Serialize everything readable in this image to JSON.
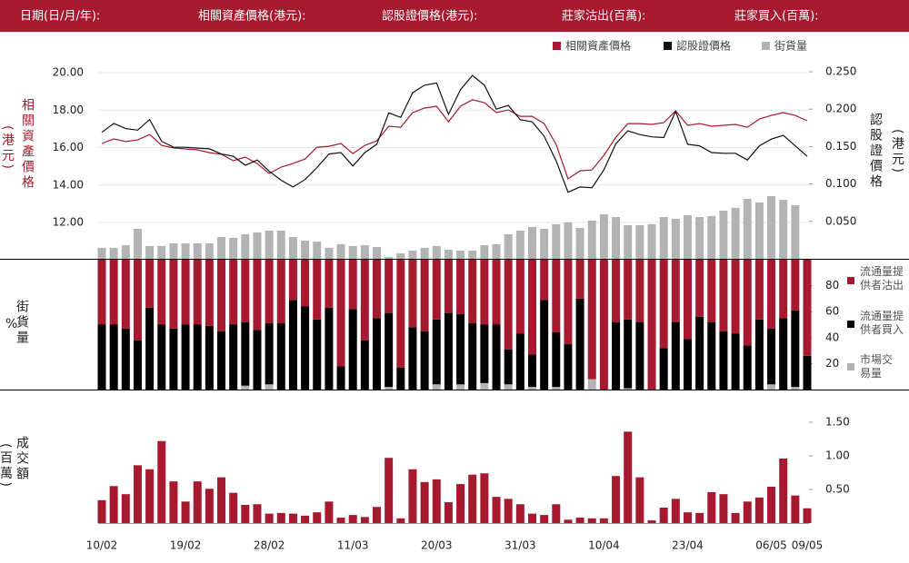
{
  "header": {
    "labels": [
      "日期(日/月/年):",
      "相關資產價格(港元):",
      "認股證價格(港元):",
      "莊家沽出(百萬):",
      "莊家買入(百萬):"
    ]
  },
  "chart_data": [
    {
      "type": "combo",
      "grid": true,
      "ylabel": "相關資產價格",
      "ylabel_unit": "(港元)",
      "y2label": "認股證價格",
      "y2label_unit": "(港元)",
      "ylim": [
        10.06,
        20.73
      ],
      "yticks": [
        {
          "value": 12,
          "label": "12.00"
        },
        {
          "value": 14,
          "label": "14.00"
        },
        {
          "value": 16,
          "label": "16.00"
        },
        {
          "value": 18,
          "label": "18.00"
        },
        {
          "value": 20,
          "label": "20.00"
        }
      ],
      "y2lim": [
        0,
        0.267
      ],
      "y2ticks": [
        {
          "value": 0.05,
          "label": "0.050"
        },
        {
          "value": 0.1,
          "label": "0.100"
        },
        {
          "value": 0.15,
          "label": "0.150"
        },
        {
          "value": 0.2,
          "label": "0.200"
        },
        {
          "value": 0.25,
          "label": "0.250"
        }
      ],
      "y3lim": [
        0,
        100
      ],
      "series": [
        {
          "name": "相關資產價格",
          "color": "#a6192e",
          "type": "line",
          "values": [
            16.22,
            16.46,
            16.32,
            16.41,
            16.7,
            16.12,
            15.98,
            15.93,
            15.88,
            15.73,
            15.64,
            15.3,
            15.49,
            15.15,
            14.62,
            14.96,
            15.15,
            15.39,
            16.02,
            16.07,
            16.22,
            15.68,
            16.12,
            16.36,
            17.14,
            17.09,
            17.87,
            18.11,
            18.21,
            17.38,
            18.21,
            18.55,
            18.4,
            17.87,
            18.01,
            17.67,
            17.67,
            17.28,
            16.17,
            14.33,
            14.76,
            14.81,
            15.59,
            16.56,
            17.28,
            17.28,
            17.24,
            17.33,
            17.96,
            17.19,
            17.28,
            17.14,
            17.19,
            17.24,
            17.09,
            17.53,
            17.72,
            17.87,
            17.72,
            17.43
          ]
        },
        {
          "name": "認股證價格",
          "color": "#111111",
          "type": "line",
          "axis": "y2",
          "values": [
            0.169,
            0.181,
            0.174,
            0.172,
            0.186,
            0.157,
            0.149,
            0.149,
            0.148,
            0.147,
            0.14,
            0.137,
            0.125,
            0.132,
            0.117,
            0.105,
            0.096,
            0.106,
            0.122,
            0.14,
            0.142,
            0.124,
            0.142,
            0.153,
            0.195,
            0.189,
            0.222,
            0.232,
            0.235,
            0.193,
            0.226,
            0.245,
            0.232,
            0.2,
            0.205,
            0.186,
            0.183,
            0.164,
            0.131,
            0.089,
            0.096,
            0.095,
            0.119,
            0.154,
            0.171,
            0.166,
            0.163,
            0.162,
            0.197,
            0.153,
            0.151,
            0.142,
            0.141,
            0.141,
            0.132,
            0.151,
            0.16,
            0.165,
            0.151,
            0.137
          ]
        },
        {
          "name": "街貨量",
          "color": "#b3b3b3",
          "type": "bar",
          "axis": "y3",
          "values": [
            5.5,
            5.5,
            6.8,
            15.0,
            6.4,
            6.4,
            7.7,
            7.7,
            7.7,
            7.7,
            10.9,
            10.5,
            12.3,
            13.2,
            14.1,
            14.1,
            10.9,
            9.1,
            8.6,
            5.5,
            7.3,
            6.4,
            6.8,
            5.9,
            0.9,
            2.7,
            4.1,
            5.5,
            6.4,
            4.5,
            4.1,
            4.1,
            6.8,
            7.3,
            12.3,
            14.1,
            15.9,
            15.0,
            17.3,
            18.2,
            15.5,
            19.1,
            22.3,
            20.9,
            16.8,
            16.8,
            17.3,
            20.9,
            20.0,
            21.8,
            20.9,
            21.4,
            24.1,
            25.5,
            30.0,
            28.2,
            31.4,
            29.5,
            26.8,
            null
          ]
        }
      ]
    },
    {
      "type": "stacked_bar",
      "ylabel": "街貨量",
      "ylabel_unit": "%",
      "ylim": [
        0,
        100
      ],
      "yticks": [
        20,
        40,
        60,
        80
      ],
      "series": [
        {
          "name": "流通量提供者沽出",
          "color": "#a6192e",
          "values": [
            50,
            50,
            53,
            62,
            37,
            50,
            53,
            50,
            50,
            51,
            55,
            50,
            48,
            54,
            49,
            49,
            31,
            36,
            46,
            37,
            82,
            38,
            62,
            45,
            41,
            83,
            52,
            55,
            46,
            41,
            42,
            49,
            50,
            50,
            69,
            57,
            73,
            31,
            56,
            65,
            30,
            92,
            100,
            48,
            46,
            48,
            100,
            68,
            48,
            61,
            44,
            48,
            55,
            57,
            66,
            46,
            53,
            45,
            39,
            74
          ]
        },
        {
          "name": "流通量提供者買入",
          "color": "#000000",
          "values": [
            50,
            50,
            47,
            38,
            63,
            50,
            47,
            50,
            50,
            49,
            45,
            50,
            49,
            46,
            47,
            51,
            69,
            64,
            54,
            63,
            18,
            62,
            38,
            55,
            57,
            17,
            48,
            45,
            50,
            59,
            54,
            51,
            45,
            50,
            27,
            43,
            25,
            69,
            42,
            35,
            70,
            0,
            0,
            52,
            53,
            52,
            0,
            32,
            52,
            39,
            56,
            52,
            45,
            43,
            34,
            54,
            43,
            55,
            59,
            26
          ]
        },
        {
          "name": "市場交易量",
          "color": "#b3b3b3",
          "values": [
            0,
            0,
            0,
            0,
            0,
            0,
            0,
            0,
            0,
            0,
            0,
            0,
            3,
            0,
            4,
            0,
            0,
            0,
            0,
            0,
            0,
            0,
            0,
            0,
            2,
            0,
            0,
            0,
            4,
            0,
            4,
            0,
            5,
            0,
            4,
            0,
            2,
            0,
            2,
            0,
            0,
            8,
            0,
            0,
            1,
            0,
            0,
            0,
            0,
            0,
            0,
            0,
            0,
            0,
            0,
            0,
            4,
            0,
            2,
            0
          ]
        }
      ]
    },
    {
      "type": "bar",
      "ylabel": "成交額",
      "ylabel_unit": "(百萬)",
      "color": "#a6192e",
      "ylim": [
        0,
        1.635
      ],
      "yticks": [
        {
          "value": 0.5,
          "label": "0.50"
        },
        {
          "value": 1,
          "label": "1.00"
        },
        {
          "value": 1.5,
          "label": "1.50"
        }
      ],
      "categories": [
        "10/02",
        null,
        null,
        null,
        null,
        null,
        null,
        "19/02",
        null,
        null,
        null,
        null,
        null,
        null,
        "28/02",
        null,
        null,
        null,
        null,
        null,
        null,
        "11/03",
        null,
        null,
        null,
        null,
        null,
        null,
        "20/03",
        null,
        null,
        null,
        null,
        null,
        null,
        "31/03",
        null,
        null,
        null,
        null,
        null,
        null,
        "10/04",
        null,
        null,
        null,
        null,
        null,
        null,
        "23/04",
        null,
        null,
        null,
        null,
        null,
        null,
        "06/05",
        null,
        null,
        "09/05"
      ],
      "values": [
        0.34,
        0.55,
        0.43,
        0.86,
        0.8,
        1.22,
        0.62,
        0.32,
        0.62,
        0.51,
        0.68,
        0.45,
        0.27,
        0.28,
        0.14,
        0.15,
        0.14,
        0.11,
        0.16,
        0.32,
        0.08,
        0.12,
        0.09,
        0.24,
        0.97,
        0.07,
        0.8,
        0.61,
        0.65,
        0.31,
        0.58,
        0.72,
        0.74,
        0.39,
        0.36,
        0.28,
        0.14,
        0.12,
        0.28,
        0.05,
        0.08,
        0.07,
        0.07,
        0.7,
        1.36,
        0.68,
        0.04,
        0.23,
        0.36,
        0.16,
        0.15,
        0.46,
        0.43,
        0.15,
        0.32,
        0.38,
        0.54,
        0.96,
        0.41,
        0.22
      ]
    }
  ]
}
